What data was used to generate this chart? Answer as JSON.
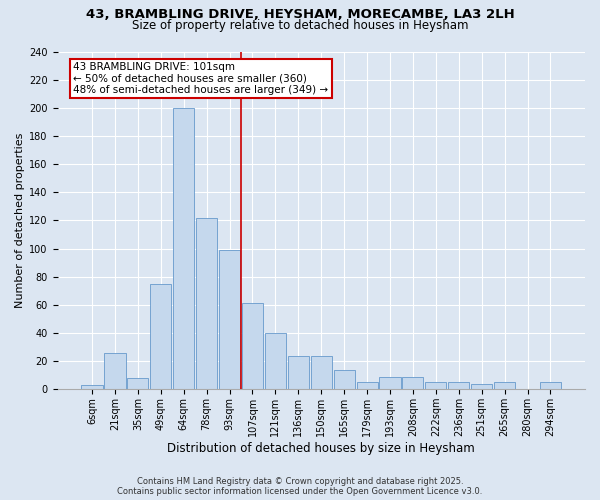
{
  "title1": "43, BRAMBLING DRIVE, HEYSHAM, MORECAMBE, LA3 2LH",
  "title2": "Size of property relative to detached houses in Heysham",
  "xlabel": "Distribution of detached houses by size in Heysham",
  "ylabel": "Number of detached properties",
  "categories": [
    "6sqm",
    "21sqm",
    "35sqm",
    "49sqm",
    "64sqm",
    "78sqm",
    "93sqm",
    "107sqm",
    "121sqm",
    "136sqm",
    "150sqm",
    "165sqm",
    "179sqm",
    "193sqm",
    "208sqm",
    "222sqm",
    "236sqm",
    "251sqm",
    "265sqm",
    "280sqm",
    "294sqm"
  ],
  "values": [
    3,
    26,
    8,
    75,
    200,
    122,
    99,
    61,
    40,
    24,
    24,
    14,
    5,
    9,
    9,
    5,
    5,
    4,
    5,
    0,
    5
  ],
  "bar_color": "#c5d8ed",
  "bar_edge_color": "#6699cc",
  "vline_color": "#cc0000",
  "vline_x": 6.5,
  "annotation_title": "43 BRAMBLING DRIVE: 101sqm",
  "annotation_line1": "← 50% of detached houses are smaller (360)",
  "annotation_line2": "48% of semi-detached houses are larger (349) →",
  "annotation_box_color": "white",
  "annotation_box_edge": "#cc0000",
  "footer1": "Contains HM Land Registry data © Crown copyright and database right 2025.",
  "footer2": "Contains public sector information licensed under the Open Government Licence v3.0.",
  "bg_color": "#dce6f2",
  "plot_bg_color": "#dce6f2",
  "grid_color": "white",
  "ylim": [
    0,
    240
  ],
  "yticks": [
    0,
    20,
    40,
    60,
    80,
    100,
    120,
    140,
    160,
    180,
    200,
    220,
    240
  ],
  "title1_fontsize": 9.5,
  "title2_fontsize": 8.5,
  "xlabel_fontsize": 8.5,
  "ylabel_fontsize": 8,
  "tick_fontsize": 7,
  "footer_fontsize": 6,
  "ann_fontsize": 7.5
}
